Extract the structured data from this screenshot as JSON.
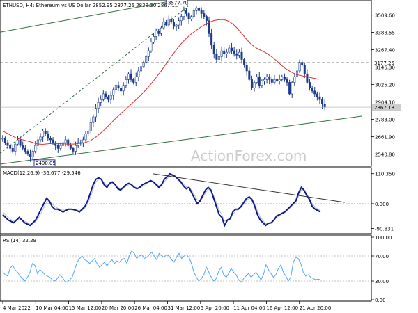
{
  "header": {
    "symbol_line": "ETHUSD, H4:  Ethereum vs US Dollar  2852.95 2877.25 2838.30 2867.18"
  },
  "watermark": "ActionForex.com",
  "colors": {
    "candle": "#1a3a8a",
    "ema": "#e03030",
    "trendline": "#2f6f3f",
    "macd_main": "#0d1a8c",
    "macd_signal": "#bbbbbb",
    "macd_trend": "#333333",
    "rsi": "#4da6ff",
    "grid_dotted": "#888888"
  },
  "chart_data": [
    {
      "type": "candlestick",
      "name": "price",
      "ylim": [
        2470,
        3600
      ],
      "yticks": [
        "3509.60",
        "3388.55",
        "3267.40",
        "3146.30",
        "3025.20",
        "2904.10",
        "2783.00",
        "2661.90",
        "2540.80"
      ],
      "ytick_values": [
        3509.6,
        3388.55,
        3267.4,
        3146.3,
        3025.2,
        2904.1,
        2783.0,
        2661.9,
        2540.8
      ],
      "annotations": [
        {
          "text": "3577.70",
          "value": 3577.7
        },
        {
          "text": "2490.05",
          "value": 2490.05
        }
      ],
      "hline": {
        "text": "3177.25",
        "value": 3177.25
      },
      "last_price": {
        "text": "2867.18",
        "value": 2867.18
      },
      "close_series": [
        2650,
        2620,
        2600,
        2580,
        2560,
        2610,
        2640,
        2600,
        2580,
        2560,
        2540,
        2520,
        2560,
        2600,
        2640,
        2660,
        2700,
        2680,
        2650,
        2640,
        2620,
        2600,
        2580,
        2600,
        2620,
        2640,
        2600,
        2580,
        2560,
        2600,
        2620,
        2620,
        2640,
        2680,
        2700,
        2760,
        2800,
        2860,
        2900,
        2920,
        2960,
        2940,
        2920,
        2950,
        2990,
        3020,
        3000,
        2980,
        3020,
        3060,
        3100,
        3060,
        3040,
        3080,
        3120,
        3150,
        3180,
        3220,
        3260,
        3320,
        3360,
        3400,
        3380,
        3420,
        3460,
        3440,
        3480,
        3460,
        3430,
        3440,
        3470,
        3500,
        3540,
        3520,
        3480,
        3500,
        3540,
        3560,
        3540,
        3520,
        3500,
        3470,
        3380,
        3300,
        3240,
        3200,
        3220,
        3260,
        3240,
        3250,
        3280,
        3260,
        3240,
        3230,
        3250,
        3200,
        3160,
        3120,
        3060,
        3000,
        3040,
        3080,
        3020,
        3050,
        3060,
        3080,
        3060,
        3040,
        3060,
        3050,
        3060,
        3080,
        3060,
        3040,
        2960,
        3040,
        3080,
        3120,
        3180,
        3160,
        3100,
        3040,
        3000,
        2980,
        2960,
        2940,
        2920,
        2890,
        2867
      ],
      "ema_series": [
        2700,
        2690,
        2680,
        2670,
        2660,
        2650,
        2645,
        2640,
        2635,
        2630,
        2625,
        2618,
        2612,
        2610,
        2608,
        2610,
        2612,
        2614,
        2615,
        2614,
        2613,
        2612,
        2611,
        2610,
        2610,
        2610,
        2612,
        2614,
        2616,
        2620,
        2626,
        2634,
        2646,
        2660,
        2676,
        2692,
        2710,
        2730,
        2750,
        2770,
        2790,
        2808,
        2826,
        2844,
        2862,
        2880,
        2898,
        2916,
        2934,
        2954,
        2974,
        2996,
        3018,
        3042,
        3066,
        3092,
        3118,
        3146,
        3174,
        3202,
        3230,
        3256,
        3282,
        3306,
        3328,
        3348,
        3366,
        3382,
        3396,
        3410,
        3424,
        3436,
        3448,
        3458,
        3466,
        3472,
        3476,
        3478,
        3478,
        3474,
        3466,
        3454,
        3438,
        3418,
        3396,
        3372,
        3348,
        3326,
        3306,
        3290,
        3278,
        3268,
        3258,
        3248,
        3236,
        3222,
        3206,
        3190,
        3172,
        3154,
        3138,
        3126,
        3114,
        3104,
        3096,
        3090,
        3086,
        3082,
        3078,
        3074,
        3070,
        3066,
        3062
      ],
      "trendlines": [
        {
          "from": [
            0,
            3390
          ],
          "to": [
            260,
            3620
          ]
        },
        {
          "from": [
            0,
            2470
          ],
          "to": [
            520,
            2805
          ]
        },
        {
          "from": [
            0,
            2545
          ],
          "to": [
            270,
            3570
          ],
          "dashed": true
        }
      ]
    },
    {
      "type": "line",
      "name": "macd",
      "label": "MACD(12,26,9) -36.677 -29.546",
      "ylim": [
        -105,
        125
      ],
      "yticks": [
        "110.350",
        "0.000",
        "-90.831"
      ],
      "ytick_values": [
        110.35,
        0,
        -90.831
      ],
      "main_series": [
        -40,
        -50,
        -60,
        -65,
        -70,
        -60,
        -50,
        -60,
        -70,
        -75,
        -80,
        -70,
        -60,
        -40,
        -20,
        0,
        20,
        10,
        -10,
        -20,
        -20,
        -25,
        -30,
        -25,
        -20,
        -20,
        -22,
        -25,
        -30,
        -20,
        -10,
        10,
        40,
        70,
        90,
        95,
        90,
        70,
        60,
        75,
        80,
        70,
        55,
        50,
        60,
        70,
        75,
        70,
        60,
        55,
        60,
        70,
        75,
        80,
        85,
        80,
        70,
        60,
        70,
        90,
        100,
        110,
        105,
        100,
        90,
        80,
        65,
        55,
        60,
        40,
        20,
        0,
        10,
        30,
        50,
        60,
        50,
        20,
        -10,
        -40,
        -50,
        -80,
        -60,
        -55,
        -30,
        -20,
        -20,
        -10,
        5,
        20,
        25,
        15,
        -10,
        -40,
        -60,
        -70,
        -80,
        -72,
        -70,
        -60,
        -45,
        -40,
        -35,
        -30,
        -20,
        -10,
        0,
        10,
        40,
        60,
        50,
        30,
        15,
        -10,
        -20,
        -25,
        -30
      ],
      "signal_series": [
        -30,
        -40,
        -50,
        -58,
        -64,
        -62,
        -56,
        -58,
        -64,
        -70,
        -75,
        -72,
        -66,
        -52,
        -34,
        -14,
        6,
        10,
        0,
        -10,
        -16,
        -20,
        -24,
        -24,
        -22,
        -21,
        -21,
        -23,
        -27,
        -24,
        -16,
        0,
        24,
        54,
        80,
        90,
        90,
        78,
        66,
        70,
        76,
        72,
        62,
        54,
        56,
        64,
        70,
        70,
        64,
        58,
        58,
        64,
        70,
        76,
        82,
        80,
        74,
        66,
        68,
        80,
        92,
        104,
        104,
        102,
        94,
        84,
        72,
        62,
        60,
        48,
        32,
        14,
        10,
        22,
        40,
        52,
        50,
        30,
        4,
        -24,
        -40,
        -64,
        -62,
        -58,
        -40,
        -26,
        -22,
        -14,
        -2,
        12,
        20,
        18,
        0,
        -26,
        -48,
        -62,
        -74,
        -72,
        -70,
        -62,
        -50,
        -44,
        -38,
        -32,
        -24,
        -14,
        -4,
        6,
        28,
        50,
        50,
        36,
        20,
        0,
        -12,
        -20,
        -26
      ],
      "trendline": {
        "from": [
          220,
          110
        ],
        "to": [
          495,
          5
        ]
      }
    },
    {
      "type": "line",
      "name": "rsi",
      "label": "RSI(14) 32.29",
      "ylim": [
        0,
        100
      ],
      "yticks": [
        "100.00",
        "70.00",
        "30.00",
        "0.00"
      ],
      "ytick_values": [
        100,
        70,
        30,
        0
      ],
      "dotted_levels": [
        70,
        30
      ],
      "series": [
        45,
        40,
        38,
        50,
        55,
        48,
        44,
        38,
        34,
        30,
        36,
        44,
        58,
        55,
        42,
        48,
        45,
        40,
        38,
        36,
        32,
        30,
        34,
        40,
        36,
        30,
        28,
        32,
        36,
        48,
        60,
        66,
        70,
        64,
        62,
        58,
        62,
        66,
        58,
        52,
        56,
        60,
        54,
        60,
        64,
        58,
        62,
        60,
        64,
        66,
        58,
        70,
        78,
        74,
        66,
        70,
        72,
        66,
        68,
        72,
        76,
        70,
        64,
        74,
        70,
        68,
        72,
        70,
        64,
        60,
        68,
        74,
        66,
        70,
        72,
        68,
        58,
        44,
        36,
        30,
        34,
        40,
        52,
        44,
        36,
        30,
        34,
        46,
        52,
        40,
        36,
        42,
        50,
        44,
        40,
        32,
        28,
        34,
        38,
        42,
        36,
        40,
        44,
        38,
        32,
        40,
        56,
        48,
        42,
        36,
        40,
        50,
        56,
        44,
        38,
        30,
        36,
        60,
        68,
        66,
        58,
        44,
        38,
        40,
        36,
        34,
        32,
        33,
        32
      ],
      "xticks": [
        "4 Mar 2022",
        "10 Mar 04:00",
        "15 Mar 12:00",
        "20 Mar 20:00",
        "26 Mar 04:00",
        "31 Mar 12:00",
        "5 Apr 20:00",
        "11 Apr 04:00",
        "16 Apr 12:00",
        "21 Apr 20:00"
      ]
    }
  ]
}
